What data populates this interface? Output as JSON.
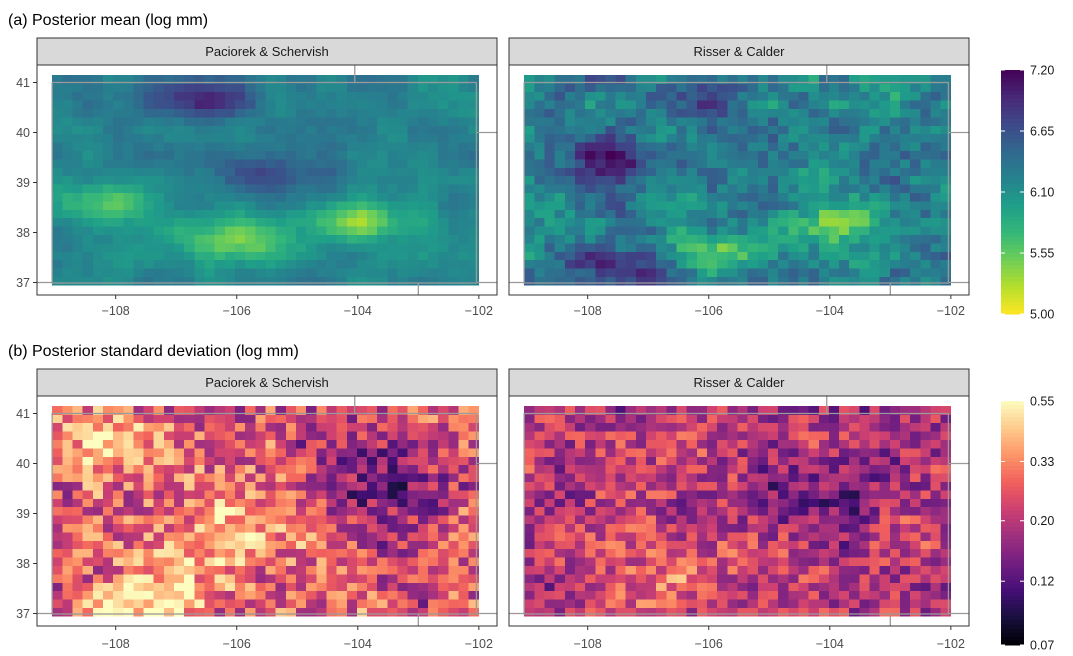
{
  "chart_data": [
    {
      "type": "heatmap",
      "title": "(a) Posterior mean (log mm)",
      "panels": [
        "Paciorek & Schervish",
        "Risser & Calder"
      ],
      "x_ticks": [
        -108,
        -106,
        -104,
        -102
      ],
      "x_tick_labels": [
        "−108",
        "−106",
        "−104",
        "−102"
      ],
      "y_ticks": [
        37,
        38,
        39,
        40,
        41
      ],
      "y_tick_labels": [
        "37",
        "38",
        "39",
        "40",
        "41"
      ],
      "xlim": [
        -109.3,
        -101.7
      ],
      "ylim": [
        36.75,
        41.35
      ],
      "grid_extent": {
        "lon": [
          -109.05,
          -102.0
        ],
        "lat": [
          36.95,
          41.15
        ]
      },
      "grid_size": {
        "cols": 42,
        "rows": 25
      },
      "colorbar": {
        "scale": "viridis (reversed)",
        "ticks": [
          5.0,
          5.55,
          6.1,
          6.65,
          7.2
        ],
        "tick_labels": [
          "5.00",
          "5.55",
          "6.10",
          "6.65",
          "7.20"
        ],
        "range": [
          5.0,
          7.2
        ],
        "placement": "right"
      },
      "features": [
        {
          "panel": 0,
          "lon": -104.0,
          "lat": 38.25,
          "value": 5.4
        },
        {
          "panel": 0,
          "lon": -108.3,
          "lat": 38.6,
          "value": 5.6
        },
        {
          "panel": 0,
          "lon": -106.0,
          "lat": 37.9,
          "value": 5.45
        },
        {
          "panel": 0,
          "lon": -106.6,
          "lat": 40.7,
          "value": 6.9
        },
        {
          "panel": 0,
          "lon": -105.6,
          "lat": 39.2,
          "value": 6.7
        },
        {
          "panel": 1,
          "lon": -103.9,
          "lat": 38.2,
          "value": 5.35
        },
        {
          "panel": 1,
          "lon": -105.9,
          "lat": 37.6,
          "value": 5.4
        },
        {
          "panel": 1,
          "lon": -107.2,
          "lat": 37.4,
          "value": 7.1
        },
        {
          "panel": 1,
          "lon": -107.5,
          "lat": 39.5,
          "value": 6.9
        },
        {
          "panel": 1,
          "lon": -106.5,
          "lat": 40.6,
          "value": 6.8
        }
      ]
    },
    {
      "type": "heatmap",
      "title": "(b) Posterior standard deviation (log mm)",
      "panels": [
        "Paciorek & Schervish",
        "Risser & Calder"
      ],
      "x_ticks": [
        -108,
        -106,
        -104,
        -102
      ],
      "x_tick_labels": [
        "−108",
        "−106",
        "−104",
        "−102"
      ],
      "y_ticks": [
        37,
        38,
        39,
        40,
        41
      ],
      "y_tick_labels": [
        "37",
        "38",
        "39",
        "40",
        "41"
      ],
      "xlim": [
        -109.3,
        -101.7
      ],
      "ylim": [
        36.75,
        41.35
      ],
      "grid_extent": {
        "lon": [
          -109.05,
          -102.0
        ],
        "lat": [
          36.95,
          41.15
        ]
      },
      "grid_size": {
        "cols": 42,
        "rows": 25
      },
      "colorbar": {
        "scale": "magma (reversed, log)",
        "ticks": [
          0.07,
          0.12,
          0.2,
          0.33,
          0.55
        ],
        "tick_labels": [
          "0.07",
          "0.12",
          "0.20",
          "0.33",
          "0.55"
        ],
        "range": [
          0.07,
          0.55
        ],
        "placement": "right"
      },
      "features": [
        {
          "panel": 0,
          "lon": -103.6,
          "lat": 39.6,
          "value": 0.1
        },
        {
          "panel": 0,
          "lon": -107.5,
          "lat": 37.1,
          "value": 0.5
        },
        {
          "panel": 0,
          "lon": -106.3,
          "lat": 38.6,
          "value": 0.42
        },
        {
          "panel": 0,
          "lon": -108.2,
          "lat": 40.5,
          "value": 0.38
        },
        {
          "panel": 1,
          "lon": -104.5,
          "lat": 39.3,
          "value": 0.14
        },
        {
          "panel": 1,
          "lon": -106.5,
          "lat": 37.8,
          "value": 0.3
        }
      ]
    }
  ]
}
